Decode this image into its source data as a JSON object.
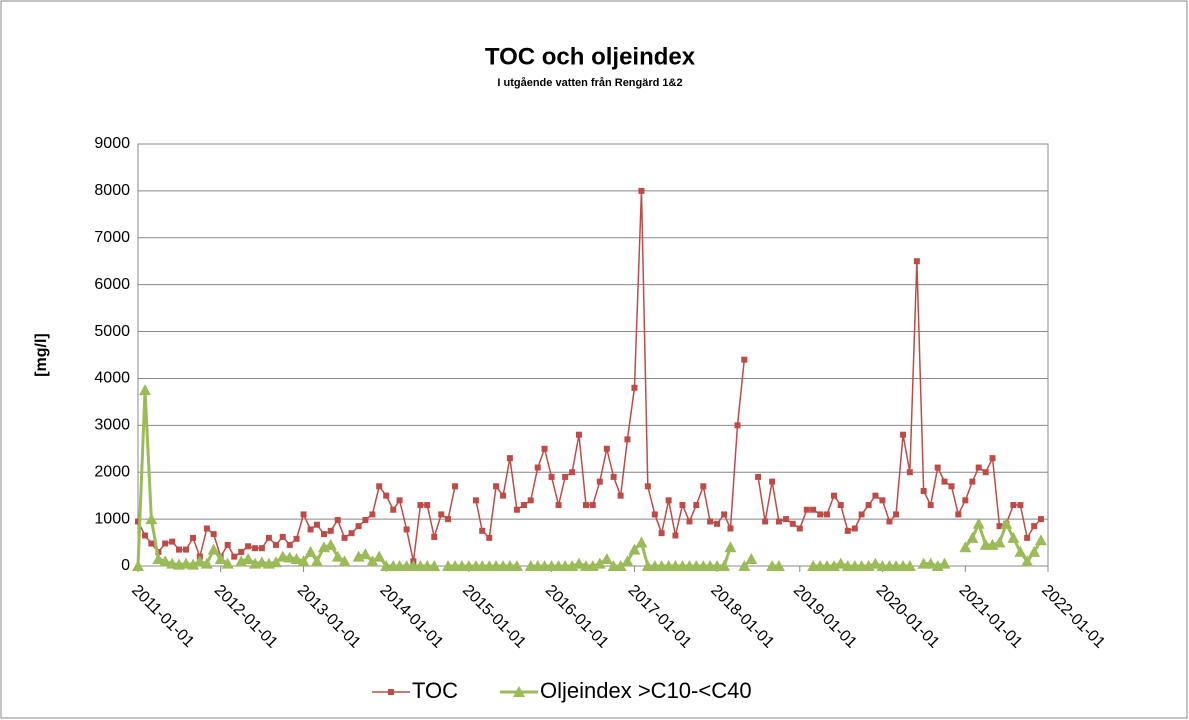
{
  "chart_data": {
    "type": "line",
    "title": "TOC och oljeindex",
    "subtitle": "I utgående vatten från Rengärd 1&2",
    "y_label": "[mg/l]",
    "x": [
      "2011-01-01",
      "2011-02-01",
      "2011-03-01",
      "2011-04-01",
      "2011-05-01",
      "2011-06-01",
      "2011-07-01",
      "2011-08-01",
      "2011-09-01",
      "2011-10-01",
      "2011-11-01",
      "2011-12-01",
      "2012-01-01",
      "2012-02-01",
      "2012-03-01",
      "2012-04-01",
      "2012-05-01",
      "2012-06-01",
      "2012-07-01",
      "2012-08-01",
      "2012-09-01",
      "2012-10-01",
      "2012-11-01",
      "2012-12-01",
      "2013-01-01",
      "2013-02-01",
      "2013-03-01",
      "2013-04-01",
      "2013-05-01",
      "2013-06-01",
      "2013-07-01",
      "2013-08-01",
      "2013-09-01",
      "2013-10-01",
      "2013-11-01",
      "2013-12-01",
      "2014-01-01",
      "2014-02-01",
      "2014-03-01",
      "2014-04-01",
      "2014-05-01",
      "2014-06-01",
      "2014-07-01",
      "2014-08-01",
      "2014-09-01",
      "2014-10-01",
      "2014-11-01",
      "2014-12-01",
      "2015-01-01",
      "2015-02-01",
      "2015-03-01",
      "2015-04-01",
      "2015-05-01",
      "2015-06-01",
      "2015-07-01",
      "2015-08-01",
      "2015-09-01",
      "2015-10-01",
      "2015-11-01",
      "2015-12-01",
      "2016-01-01",
      "2016-02-01",
      "2016-03-01",
      "2016-04-01",
      "2016-05-01",
      "2016-06-01",
      "2016-07-01",
      "2016-08-01",
      "2016-09-01",
      "2016-10-01",
      "2016-11-01",
      "2016-12-01",
      "2017-01-01",
      "2017-02-01",
      "2017-03-01",
      "2017-04-01",
      "2017-05-01",
      "2017-06-01",
      "2017-07-01",
      "2017-08-01",
      "2017-09-01",
      "2017-10-01",
      "2017-11-01",
      "2017-12-01",
      "2018-01-01",
      "2018-02-01",
      "2018-03-01",
      "2018-04-01",
      "2018-05-01",
      "2018-06-01",
      "2018-07-01",
      "2018-08-01",
      "2018-09-01",
      "2018-10-01",
      "2018-11-01",
      "2018-12-01",
      "2019-01-01",
      "2019-02-01",
      "2019-03-01",
      "2019-04-01",
      "2019-05-01",
      "2019-06-01",
      "2019-07-01",
      "2019-08-01",
      "2019-09-01",
      "2019-10-01",
      "2019-11-01",
      "2019-12-01",
      "2020-01-01",
      "2020-02-01",
      "2020-03-01",
      "2020-04-01",
      "2020-05-01",
      "2020-06-01",
      "2020-07-01",
      "2020-08-01",
      "2020-09-01",
      "2020-10-01",
      "2020-11-01",
      "2020-12-01",
      "2021-01-01",
      "2021-02-01",
      "2021-03-01",
      "2021-04-01",
      "2021-05-01",
      "2021-06-01",
      "2021-07-01",
      "2021-08-01",
      "2021-09-01",
      "2021-10-01",
      "2021-11-01",
      "2021-12-01"
    ],
    "series": [
      {
        "name": "TOC",
        "color": "#be4b48",
        "marker": "square",
        "values": [
          950,
          650,
          480,
          300,
          480,
          520,
          350,
          350,
          600,
          200,
          800,
          680,
          200,
          450,
          200,
          300,
          420,
          380,
          380,
          600,
          450,
          620,
          450,
          580,
          1100,
          780,
          880,
          680,
          750,
          980,
          600,
          700,
          850,
          980,
          1100,
          1700,
          1500,
          1200,
          1400,
          780,
          100,
          1300,
          1300,
          620,
          1100,
          1000,
          1700,
          null,
          null,
          1400,
          750,
          600,
          1700,
          1500,
          2300,
          1200,
          1300,
          1400,
          2100,
          2500,
          1900,
          1300,
          1900,
          2000,
          2800,
          1300,
          1300,
          1800,
          2500,
          1900,
          1500,
          2700,
          3800,
          8000,
          1700,
          1100,
          700,
          1400,
          650,
          1300,
          950,
          1300,
          1700,
          950,
          900,
          1100,
          800,
          3000,
          4400,
          null,
          1900,
          950,
          1800,
          950,
          1000,
          900,
          800,
          1200,
          1200,
          1100,
          1100,
          1500,
          1300,
          750,
          800,
          1100,
          1300,
          1500,
          1400,
          950,
          1100,
          2800,
          2000,
          6500,
          1600,
          1300,
          2100,
          1800,
          1700,
          1100,
          1400,
          1800,
          2100,
          2000,
          2300,
          850,
          900,
          1300,
          1300,
          600,
          850,
          1000
        ]
      },
      {
        "name": "Oljeindex >C10-<C40",
        "color": "#9bbb59",
        "marker": "triangle",
        "values": [
          0,
          3750,
          1000,
          150,
          100,
          50,
          30,
          50,
          30,
          100,
          50,
          350,
          150,
          50,
          null,
          100,
          150,
          50,
          80,
          50,
          80,
          200,
          180,
          150,
          100,
          300,
          100,
          400,
          450,
          200,
          100,
          null,
          200,
          250,
          100,
          200,
          0,
          0,
          0,
          0,
          0,
          0,
          0,
          0,
          null,
          0,
          0,
          0,
          0,
          0,
          0,
          0,
          0,
          0,
          0,
          0,
          null,
          0,
          0,
          0,
          0,
          0,
          0,
          0,
          50,
          0,
          0,
          50,
          150,
          0,
          0,
          100,
          350,
          500,
          0,
          0,
          0,
          0,
          0,
          0,
          0,
          0,
          0,
          0,
          0,
          0,
          400,
          null,
          0,
          150,
          null,
          null,
          0,
          0,
          null,
          null,
          null,
          null,
          0,
          0,
          0,
          0,
          50,
          0,
          0,
          0,
          0,
          50,
          0,
          0,
          0,
          0,
          0,
          null,
          50,
          50,
          0,
          50,
          null,
          null,
          400,
          600,
          900,
          450,
          450,
          500,
          900,
          600,
          300,
          100,
          300,
          550
        ]
      }
    ],
    "xlim": [
      "2011-01-01",
      "2022-01-01"
    ],
    "xticks": [
      "2011-01-01",
      "2012-01-01",
      "2013-01-01",
      "2014-01-01",
      "2015-01-01",
      "2016-01-01",
      "2017-01-01",
      "2018-01-01",
      "2019-01-01",
      "2020-01-01",
      "2021-01-01",
      "2022-01-01"
    ],
    "ylim": [
      0,
      9000
    ],
    "yticks": [
      0,
      1000,
      2000,
      3000,
      4000,
      5000,
      6000,
      7000,
      8000,
      9000
    ],
    "grid": true,
    "legend": "bottom"
  }
}
